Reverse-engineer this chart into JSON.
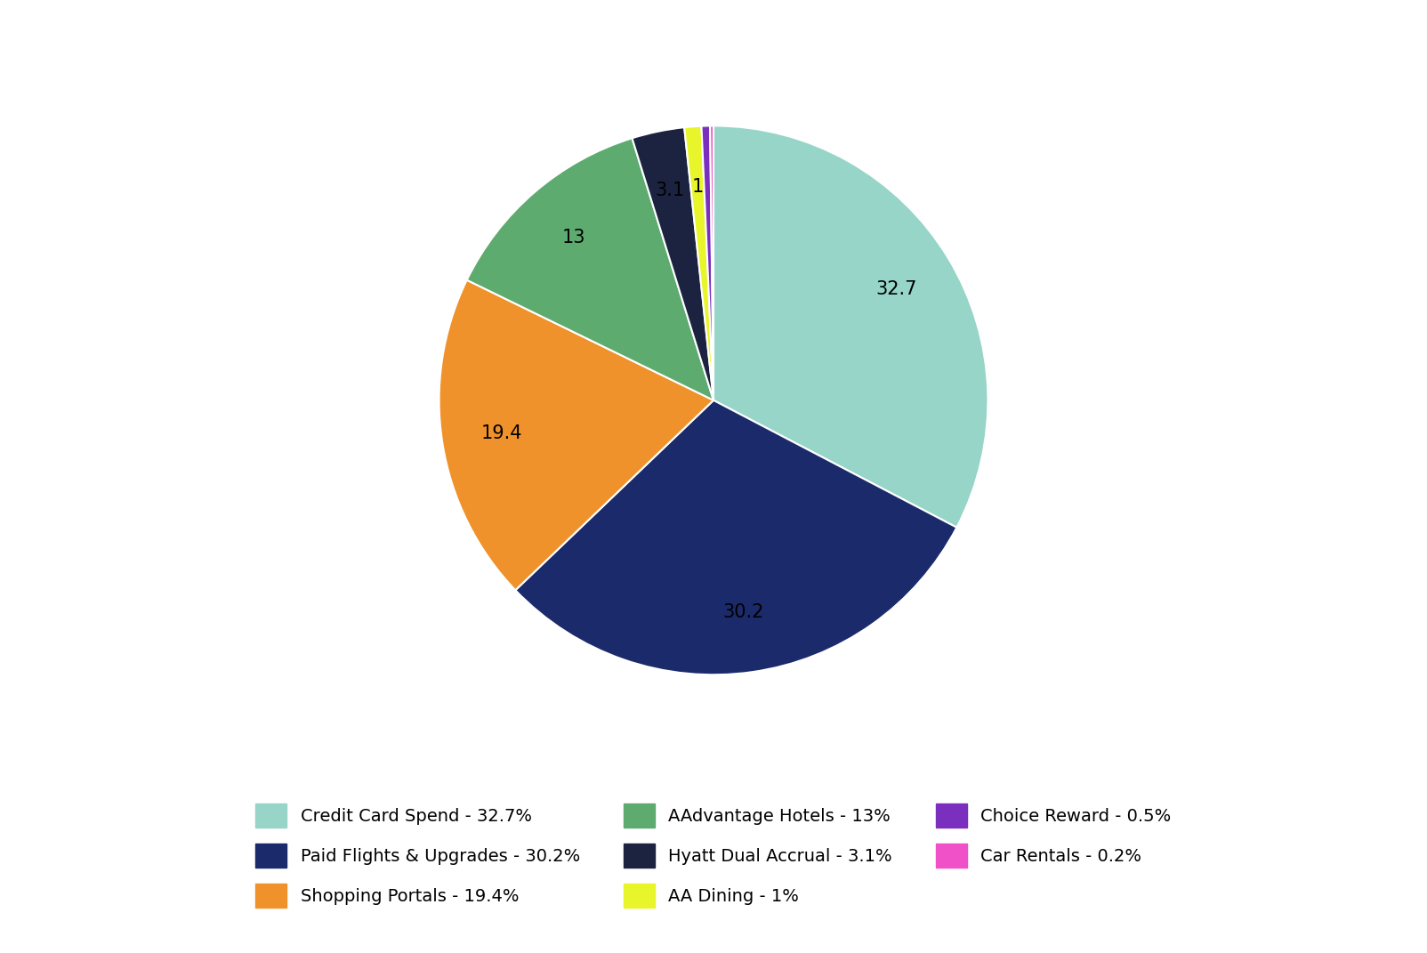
{
  "slices": [
    {
      "label": "Credit Card Spend - 32.7%",
      "value": 32.7,
      "color": "#96d5c8",
      "autopct": "32.7"
    },
    {
      "label": "Paid Flights & Upgrades - 30.2%",
      "value": 30.2,
      "color": "#1b2a6b",
      "autopct": "30.2"
    },
    {
      "label": "Shopping Portals - 19.4%",
      "value": 19.4,
      "color": "#f0922b",
      "autopct": "19.4"
    },
    {
      "label": "AAdvantage Hotels - 13%",
      "value": 13.0,
      "color": "#5dab6e",
      "autopct": "13"
    },
    {
      "label": "Hyatt Dual Accrual - 3.1%",
      "value": 3.1,
      "color": "#1c2340",
      "autopct": "3.1"
    },
    {
      "label": "AA Dining - 1%",
      "value": 1.0,
      "color": "#e8f52b",
      "autopct": "1"
    },
    {
      "label": "Choice Reward - 0.5%",
      "value": 0.5,
      "color": "#7b2fbe",
      "autopct": ""
    },
    {
      "label": "Car Rentals - 0.2%",
      "value": 0.2,
      "color": "#f050c8",
      "autopct": ""
    }
  ],
  "startangle": 90,
  "background_color": "#ffffff",
  "autopct_fontsize": 15,
  "legend_fontsize": 14,
  "legend_order": [
    "Credit Card Spend - 32.7%",
    "Paid Flights & Upgrades - 30.2%",
    "Shopping Portals - 19.4%",
    "AAdvantage Hotels - 13%",
    "Hyatt Dual Accrual - 3.1%",
    "AA Dining - 1%",
    "Choice Reward - 0.5%",
    "Car Rentals - 0.2%"
  ]
}
